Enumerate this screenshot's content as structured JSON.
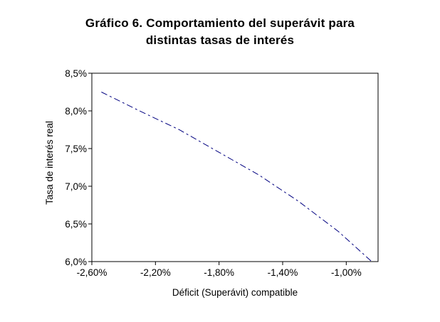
{
  "chart_data": {
    "type": "line",
    "title_line1": "Gráfico 6. Comportamiento del superávit para",
    "title_line2": "distintas tasas de interés",
    "xlabel": "Déficit (Superávit) compatible",
    "ylabel": "Tasa de interés real",
    "xlim": [
      -2.6,
      -0.8
    ],
    "ylim": [
      6.0,
      8.5
    ],
    "x_ticks": [
      "-2,60%",
      "-2,20%",
      "-1,80%",
      "-1,40%",
      "-1,00%"
    ],
    "x_tick_values": [
      -2.6,
      -2.2,
      -1.8,
      -1.4,
      -1.0
    ],
    "y_ticks": [
      "6,0%",
      "6,5%",
      "7,0%",
      "7,5%",
      "8,0%",
      "8,5%"
    ],
    "y_tick_values": [
      6.0,
      6.5,
      7.0,
      7.5,
      8.0,
      8.5
    ],
    "grid": false,
    "line_color": "#000080",
    "line_style": "dashed",
    "series": [
      {
        "x": [
          -2.54,
          -2.3,
          -2.05,
          -1.8,
          -1.55,
          -1.3,
          -1.05,
          -0.84
        ],
        "y": [
          8.25,
          8.0,
          7.75,
          7.45,
          7.15,
          6.8,
          6.4,
          6.0
        ]
      }
    ]
  }
}
